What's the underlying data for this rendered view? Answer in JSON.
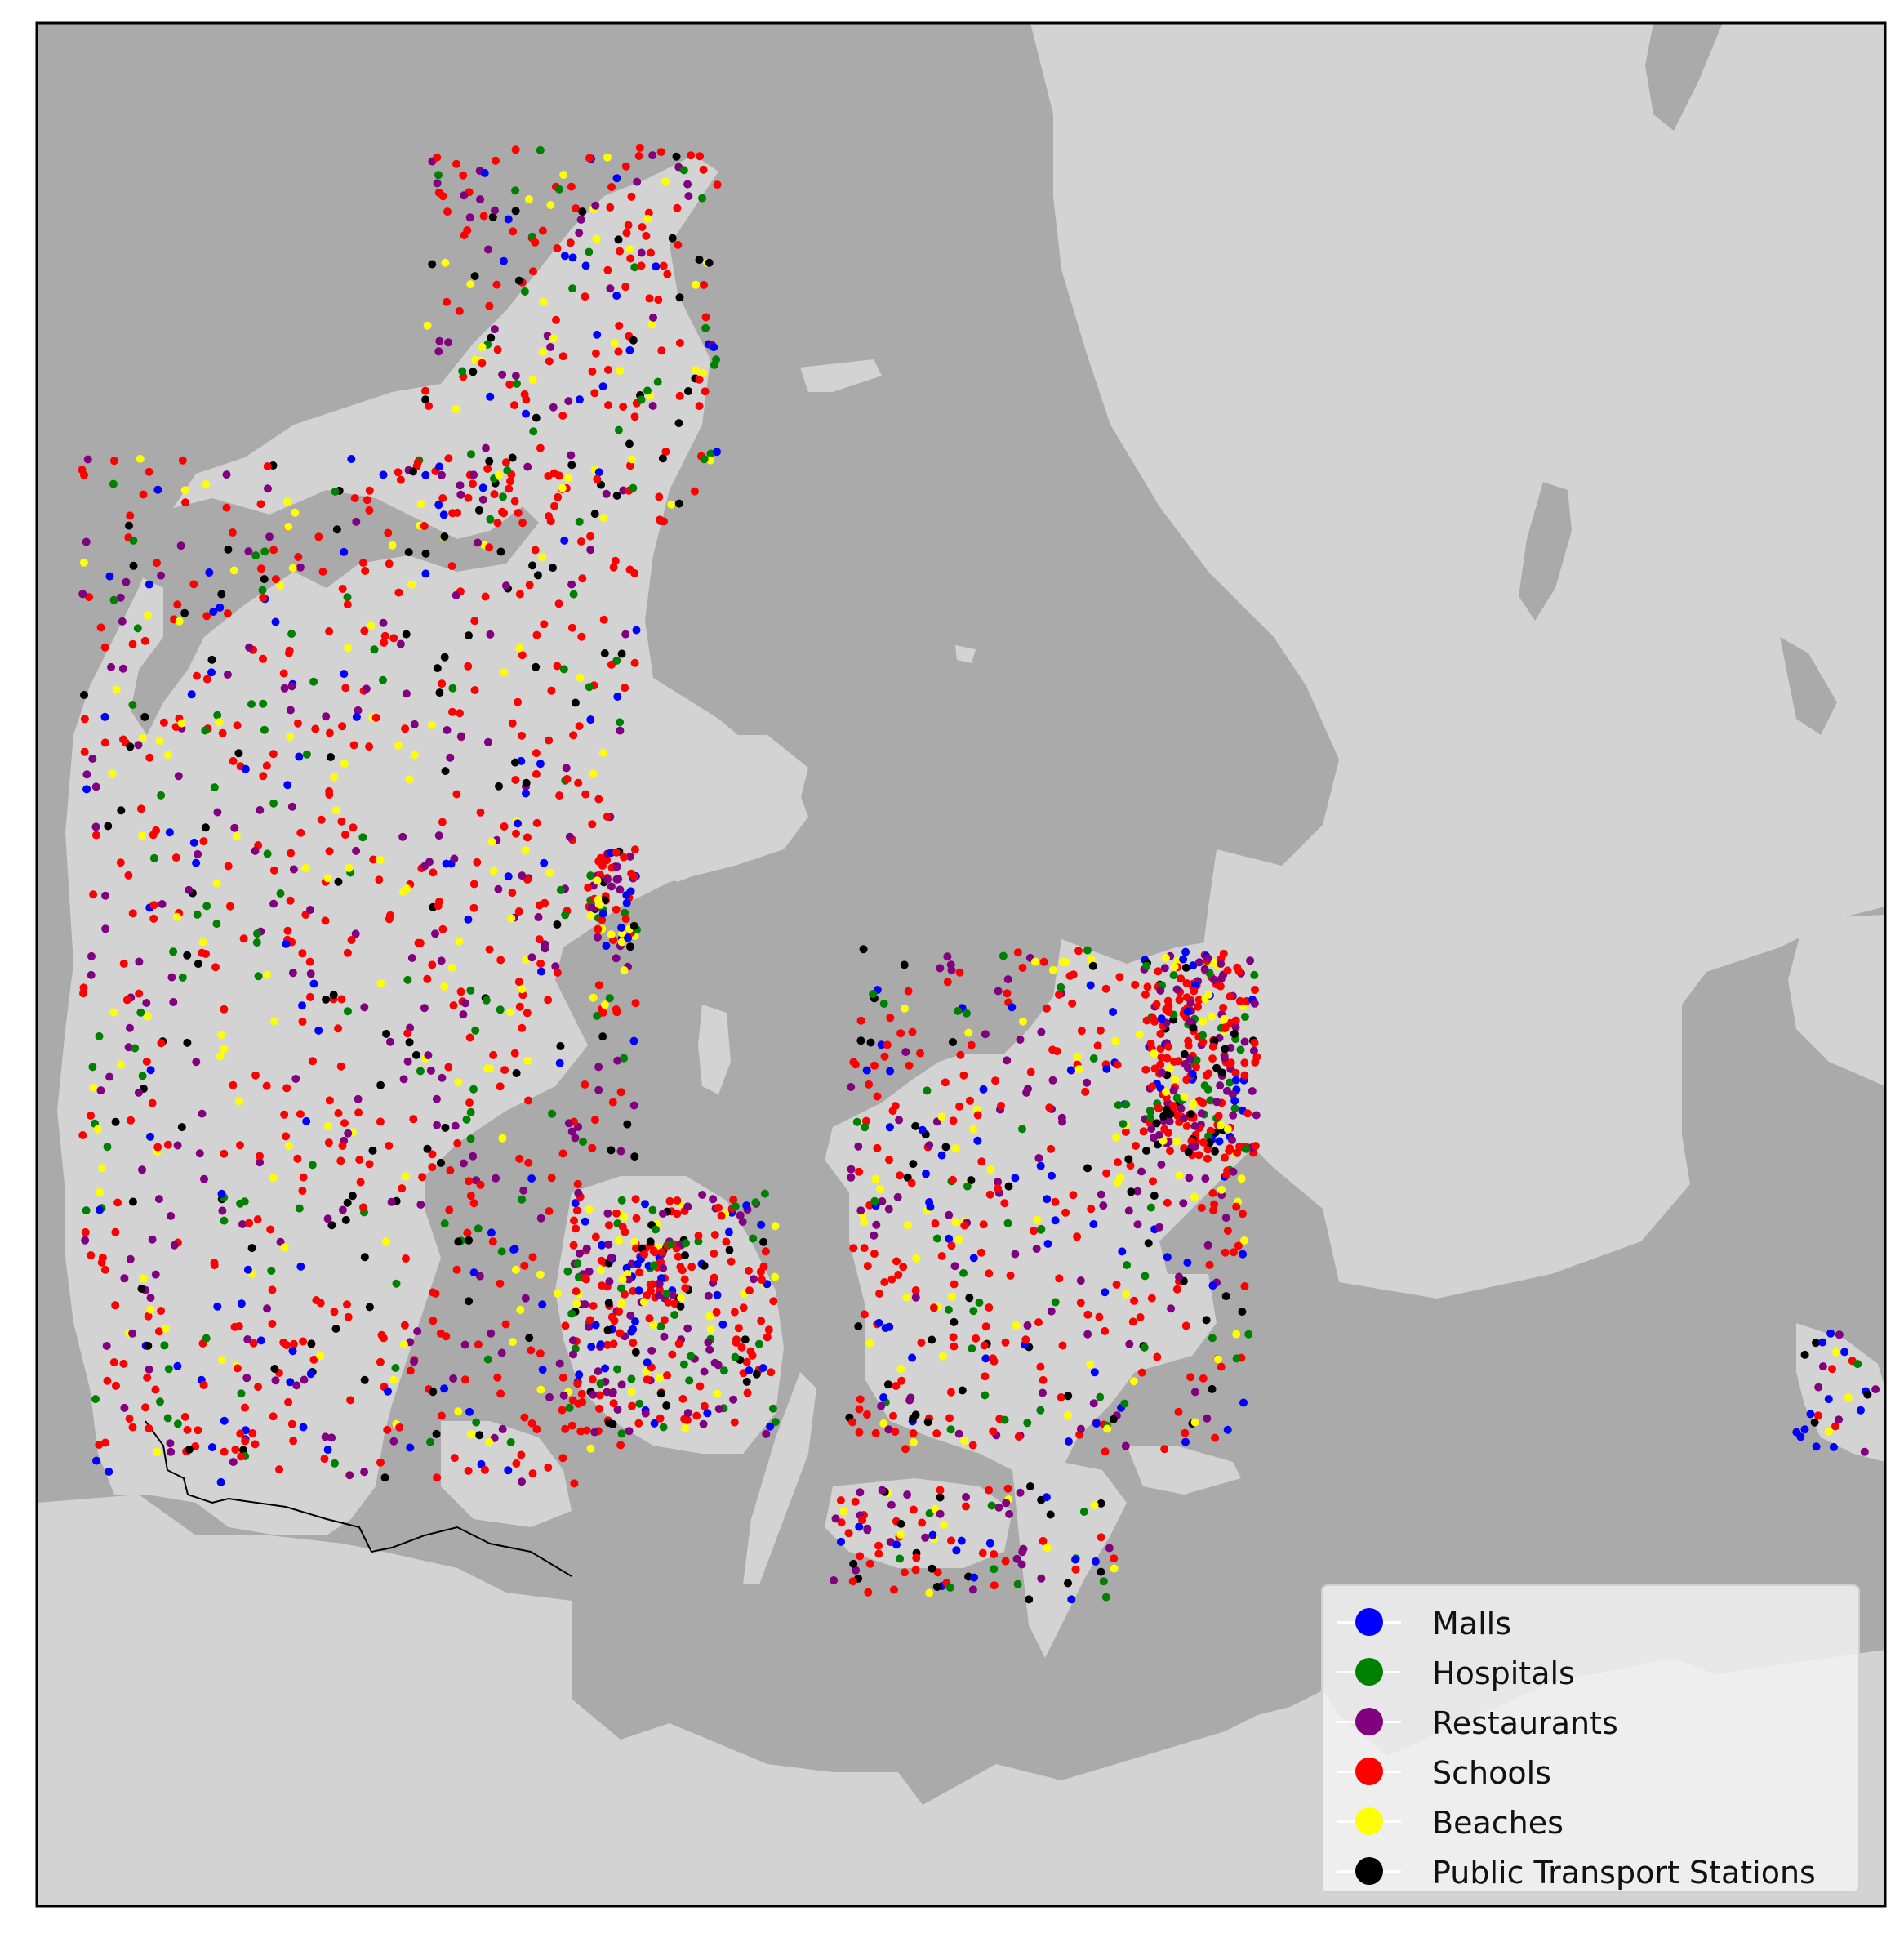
{
  "colors": {
    "sea": "#aaaaaa",
    "land": "#d3d3d3",
    "frame": "#000000"
  },
  "legend": {
    "entries": [
      {
        "label": "Malls",
        "color": "#0000ff"
      },
      {
        "label": "Hospitals",
        "color": "#008000"
      },
      {
        "label": "Restaurants",
        "color": "#800080"
      },
      {
        "label": "Schools",
        "color": "#ff0000"
      },
      {
        "label": "Beaches",
        "color": "#ffff00"
      },
      {
        "label": "Public Transport Stations",
        "color": "#000000"
      }
    ]
  }
}
